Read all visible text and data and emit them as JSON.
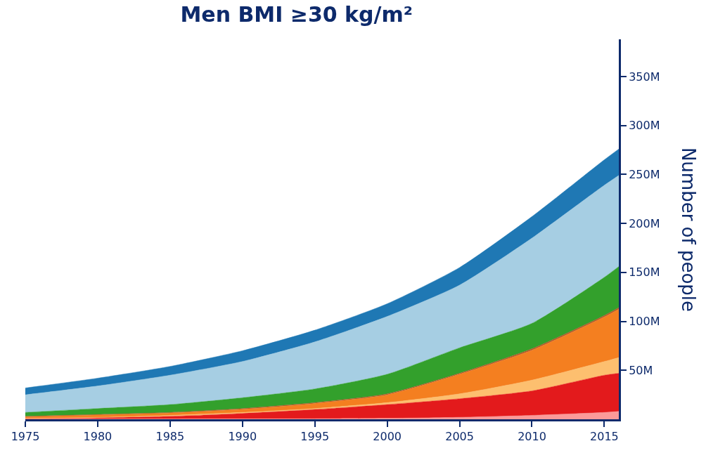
{
  "chart_data": {
    "type": "area",
    "stacked": true,
    "title": "Men BMI ≥30 kg/m²",
    "ylabel": "Number of people",
    "x": [
      1975,
      1980,
      1985,
      1990,
      1995,
      2000,
      2005,
      2010,
      2015,
      2016
    ],
    "xlim": [
      1975,
      2016
    ],
    "xticks": [
      1975,
      1980,
      1985,
      1990,
      1995,
      2000,
      2005,
      2010,
      2015
    ],
    "ylim": [
      0,
      388
    ],
    "yticks": [
      {
        "value": 50,
        "label": "50M"
      },
      {
        "value": 100,
        "label": "100M"
      },
      {
        "value": 150,
        "label": "150M"
      },
      {
        "value": 200,
        "label": "200M"
      },
      {
        "value": 250,
        "label": "250M"
      },
      {
        "value": 300,
        "label": "300M"
      },
      {
        "value": 350,
        "label": "350M"
      }
    ],
    "series": [
      {
        "color": "#fb9a99",
        "values": [
          0.2,
          0.3,
          0.4,
          0.5,
          0.6,
          1,
          2,
          4,
          7,
          8
        ]
      },
      {
        "color": "#e31a1c",
        "values": [
          0.3,
          1.2,
          2.6,
          5.5,
          9.4,
          14,
          19,
          25,
          38,
          39
        ]
      },
      {
        "color": "#fdbf6f",
        "values": [
          0.5,
          0.5,
          1,
          1,
          1,
          2,
          5,
          11,
          14,
          16
        ]
      },
      {
        "color": "#f47f20",
        "values": [
          1.5,
          2.5,
          2.5,
          3.3,
          5.2,
          8,
          20,
          30.5,
          45.5,
          49.5
        ]
      },
      {
        "color": "#b15928",
        "values": [
          0.5,
          0.5,
          0.5,
          0.7,
          0.8,
          1,
          1,
          1.5,
          1.5,
          1.5
        ]
      },
      {
        "color": "#33a02c",
        "values": [
          4,
          6,
          8,
          11,
          14,
          20,
          26,
          26,
          39,
          42
        ]
      },
      {
        "color": "#a6cee3",
        "values": [
          18,
          23,
          30,
          37,
          48,
          59,
          64,
          87,
          94,
          93
        ]
      },
      {
        "color": "#1f78b4",
        "values": [
          7,
          8,
          9,
          11,
          12,
          13,
          18,
          22,
          26,
          27
        ]
      }
    ]
  }
}
